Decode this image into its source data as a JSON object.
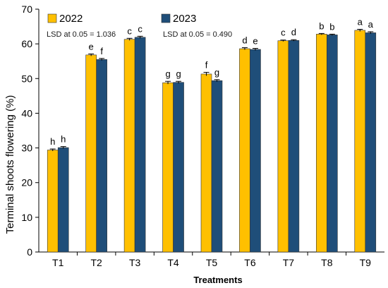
{
  "chart_data": {
    "type": "bar",
    "title": "",
    "xlabel": "Treatments",
    "ylabel": "Terminal shoots flowering (%)",
    "ylim": [
      0,
      70
    ],
    "yticks": [
      0,
      10,
      20,
      30,
      40,
      50,
      60,
      70
    ],
    "categories": [
      "T1",
      "T2",
      "T3",
      "T4",
      "T5",
      "T6",
      "T7",
      "T8",
      "T9"
    ],
    "series": [
      {
        "name": "2022",
        "color": "#FFC000",
        "values": [
          29.4,
          56.8,
          61.3,
          48.8,
          51.3,
          58.6,
          60.9,
          62.8,
          63.9
        ],
        "errors": [
          0.3,
          0.3,
          0.3,
          0.4,
          0.5,
          0.3,
          0.2,
          0.2,
          0.3
        ],
        "letters": [
          "h",
          "e",
          "c",
          "g",
          "f",
          "d",
          "c",
          "b",
          "a"
        ]
      },
      {
        "name": "2023",
        "color": "#1F4E79",
        "values": [
          30.1,
          55.5,
          61.9,
          48.9,
          49.4,
          58.4,
          61.0,
          62.6,
          63.2
        ],
        "errors": [
          0.3,
          0.3,
          0.3,
          0.3,
          0.3,
          0.3,
          0.2,
          0.2,
          0.3
        ],
        "letters": [
          "h",
          "f",
          "c",
          "g",
          "g",
          "e",
          "d",
          "b",
          "a"
        ]
      }
    ],
    "annotations": [
      "LSD at 0.05 = 1.036",
      "LSD at 0.05 = 0.490"
    ],
    "legend_placement": "top-left",
    "grid": false
  }
}
